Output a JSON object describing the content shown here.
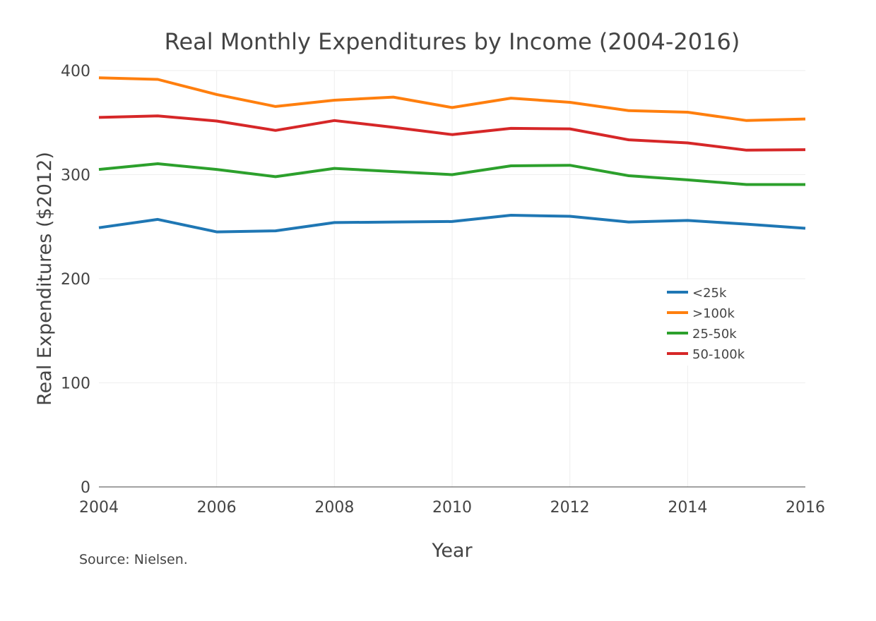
{
  "chart_data": {
    "type": "line",
    "title": "Real Monthly Expenditures by Income (2004-2016)",
    "xlabel": "Year",
    "ylabel": "Real Expenditures ($2012)",
    "source": "Source: Nielsen.",
    "xlim": [
      2004,
      2016
    ],
    "ylim": [
      0,
      400
    ],
    "x_ticks": [
      2004,
      2006,
      2008,
      2010,
      2012,
      2014,
      2016
    ],
    "y_ticks": [
      0,
      100,
      200,
      300,
      400
    ],
    "grid": true,
    "legend_position": "right",
    "x": [
      2004,
      2005,
      2006,
      2007,
      2008,
      2009,
      2010,
      2011,
      2012,
      2013,
      2014,
      2015,
      2016
    ],
    "series": [
      {
        "name": "<25k",
        "color": "#1f77b4",
        "values": [
          249,
          257,
          245,
          246,
          254,
          254.5,
          255,
          261,
          260,
          254.5,
          256,
          252.5,
          248.5
        ]
      },
      {
        "name": ">100k",
        "color": "#ff7f0e",
        "values": [
          393,
          391.5,
          377,
          365.5,
          371.5,
          374.5,
          364.5,
          373.5,
          369.5,
          361.5,
          360,
          352,
          353.5
        ]
      },
      {
        "name": "25-50k",
        "color": "#2ca02c",
        "values": [
          305,
          310.5,
          305,
          298,
          306,
          303,
          300,
          308.5,
          309,
          299,
          295,
          290.5,
          290.5
        ]
      },
      {
        "name": "50-100k",
        "color": "#d62728",
        "values": [
          355,
          356.5,
          351.5,
          342.5,
          352,
          345.5,
          338.5,
          344.5,
          344,
          333.5,
          330.5,
          323.5,
          324
        ]
      }
    ]
  }
}
